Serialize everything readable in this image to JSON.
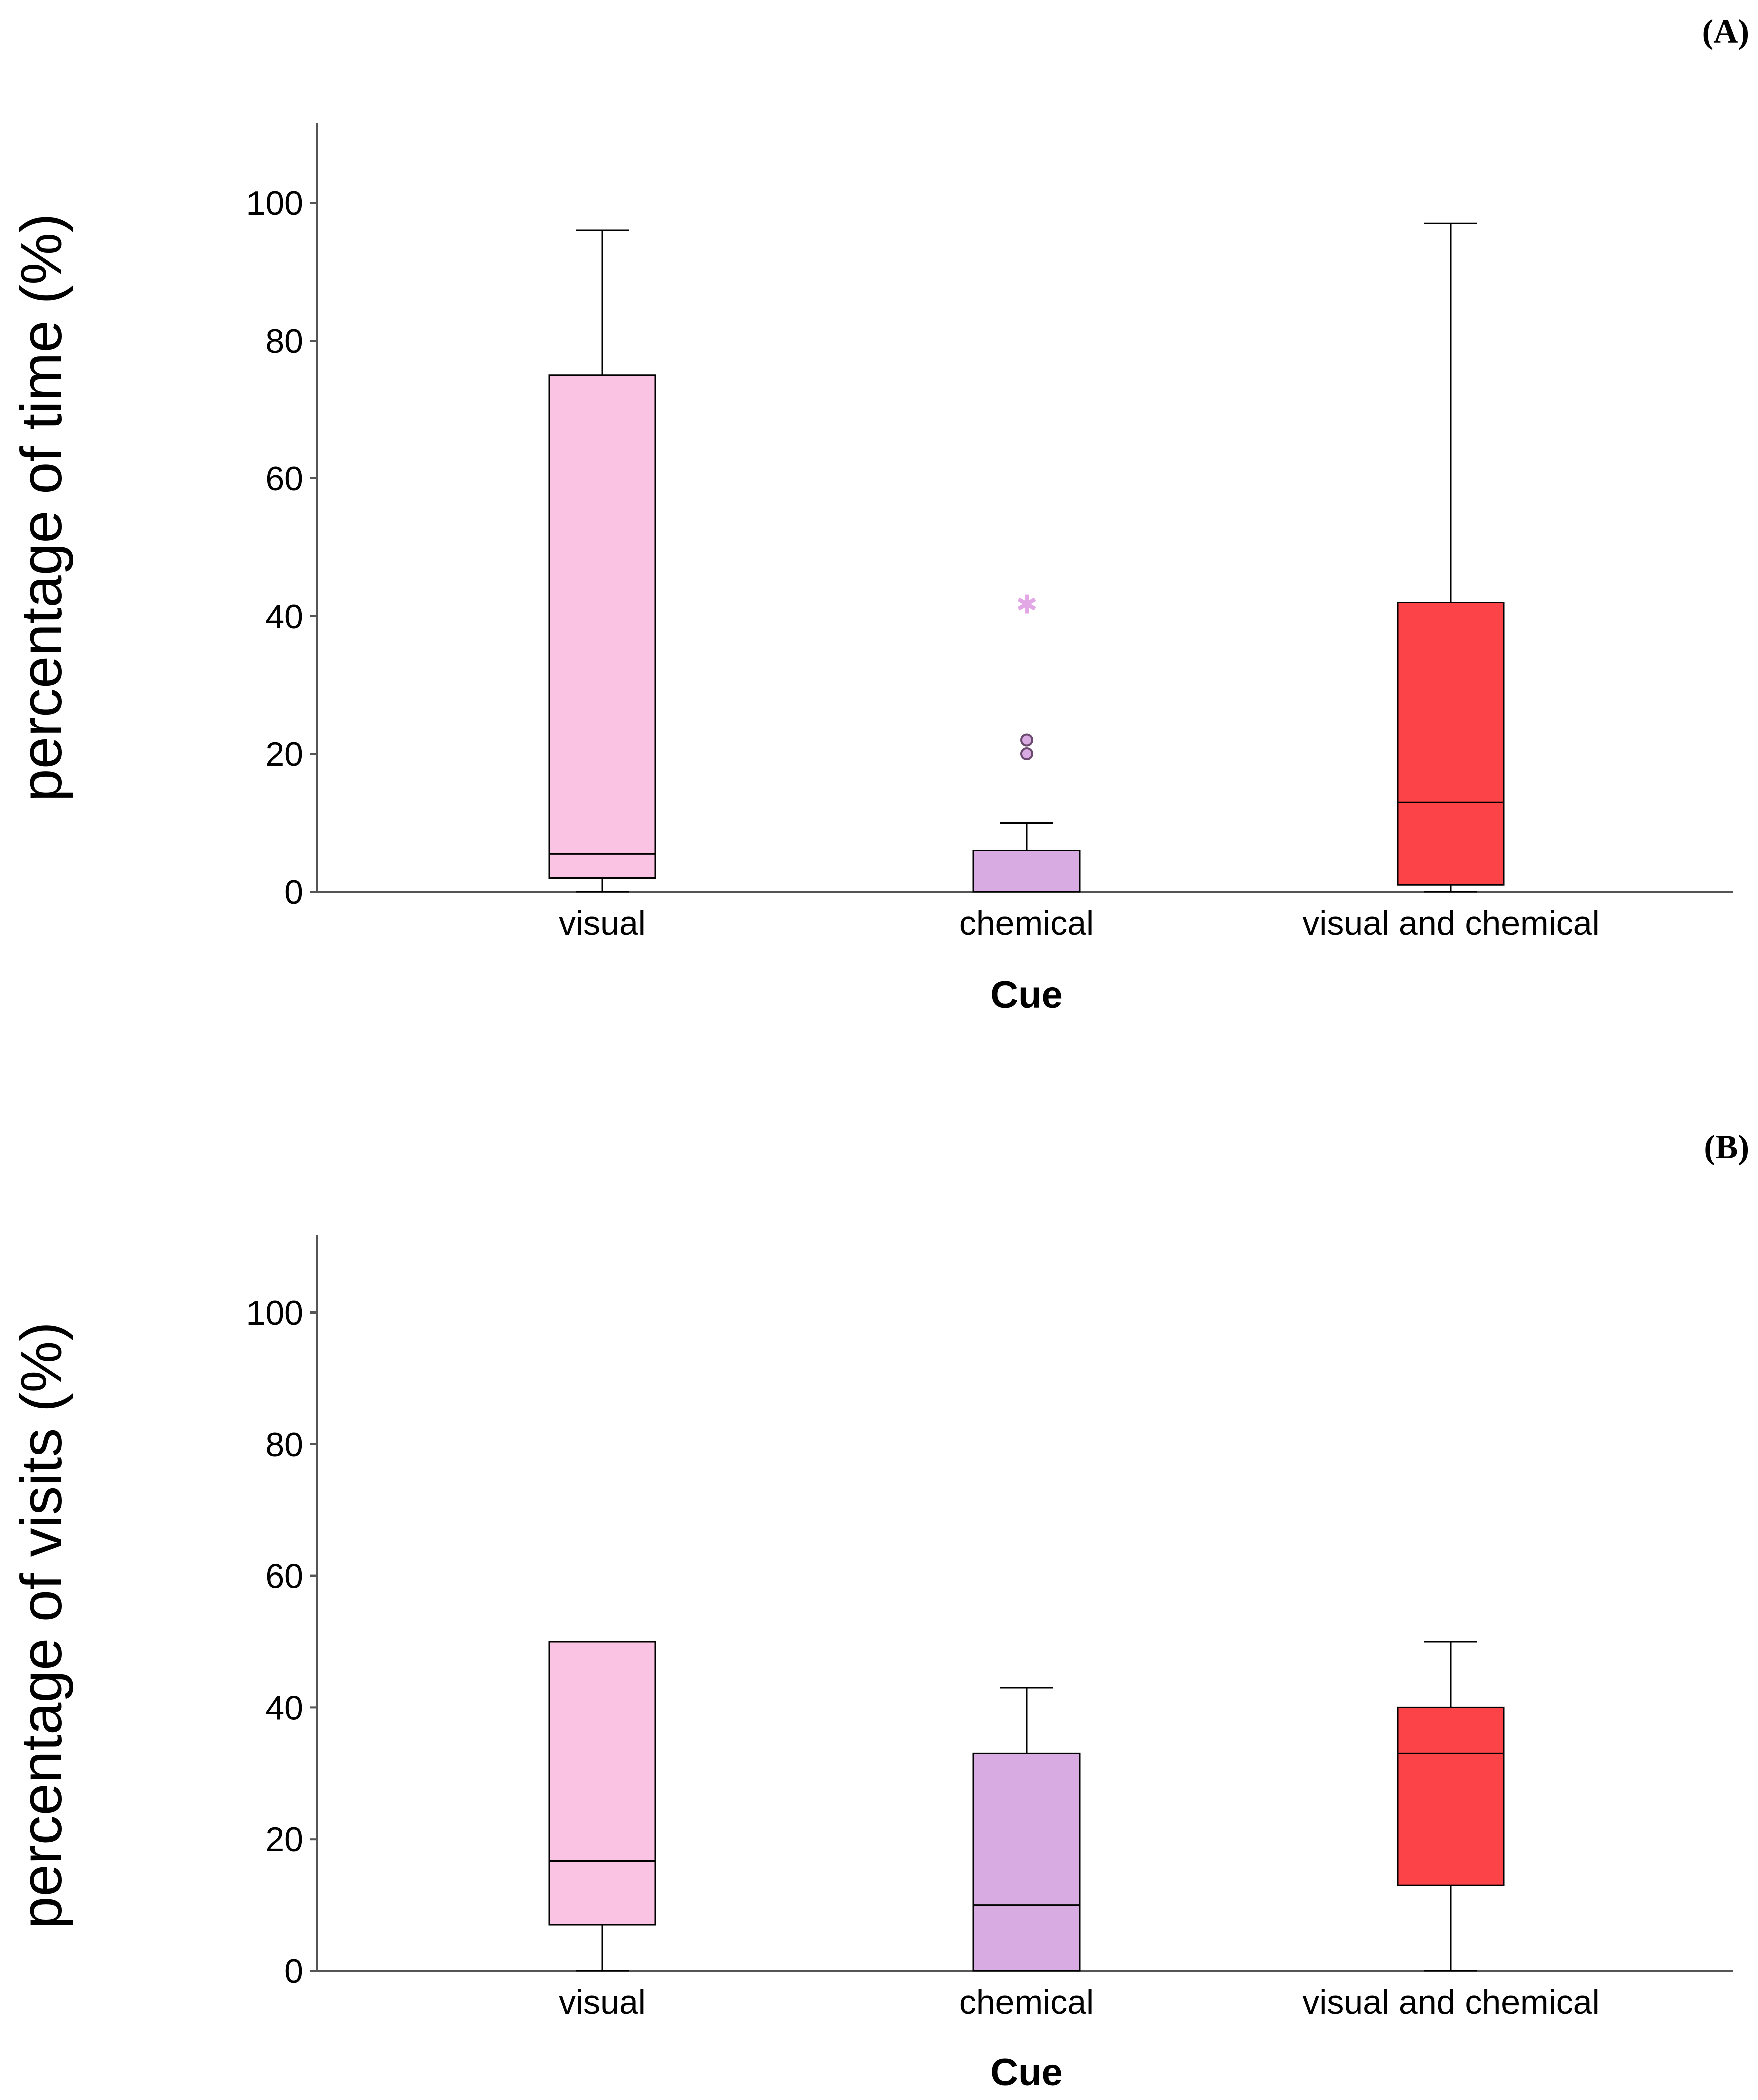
{
  "chart_data": [
    {
      "type": "boxplot",
      "panel_label": "(A)",
      "xlabel": "Cue",
      "ylabel": "percentage of time (%)",
      "ylim": [
        0,
        110
      ],
      "yticks": [
        0,
        20,
        40,
        60,
        80,
        100
      ],
      "categories": [
        "visual",
        "chemical",
        "visual and chemical"
      ],
      "colors": [
        "#fbc3e3",
        "#d8abe3",
        "#fc4448"
      ],
      "boxes": [
        {
          "category": "visual",
          "min": 0,
          "q1": 2,
          "median": 5.5,
          "q3": 75,
          "max": 96
        },
        {
          "category": "chemical",
          "min": 0,
          "q1": 0,
          "median": 0,
          "q3": 6,
          "max": 10,
          "outliers": [
            20,
            22
          ],
          "extremes": [
            42
          ]
        },
        {
          "category": "visual and chemical",
          "min": 0,
          "q1": 1,
          "median": 13,
          "q3": 42,
          "max": 97
        }
      ]
    },
    {
      "type": "boxplot",
      "panel_label": "(B)",
      "xlabel": "Cue",
      "ylabel": "percentage of visits (%)",
      "ylim": [
        0,
        110
      ],
      "yticks": [
        0,
        20,
        40,
        60,
        80,
        100
      ],
      "categories": [
        "visual",
        "chemical",
        "visual and chemical"
      ],
      "colors": [
        "#fbc3e3",
        "#d8abe3",
        "#fc4448"
      ],
      "boxes": [
        {
          "category": "visual",
          "min": 0,
          "q1": 7,
          "median": 16.7,
          "q3": 50,
          "max": 50
        },
        {
          "category": "chemical",
          "min": 0,
          "q1": 0,
          "median": 10,
          "q3": 33,
          "max": 43
        },
        {
          "category": "visual and chemical",
          "min": 0,
          "q1": 13,
          "median": 33,
          "q3": 40,
          "max": 50
        }
      ]
    }
  ]
}
